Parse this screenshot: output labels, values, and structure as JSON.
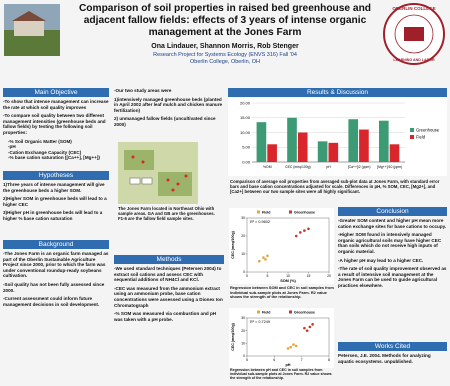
{
  "header": {
    "title": "Comparison of soil properties in raised bed greenhouse and adjacent fallow fields: effects of 3 years of intense organic management at the Jones Farm",
    "authors": "Ona Lindauer, Shannon Morris, Rob Stenger",
    "course": "Research Project for Systems Ecology (ENVS 316) Fall '04",
    "place": "Oberlin College, Oberlin, OH",
    "logo_text": "OBERLIN COLLEGE",
    "logo_motto": "LEARNING AND LABOR"
  },
  "sections": {
    "objective": {
      "title": "Main Objective",
      "items": [
        "-To show that intense management can increase the rate at which soil quality improves",
        "-To compare soil quality between two different management intensities (greenhouse beds and fallow fields) by testing the following soil properties:"
      ],
      "subitems": [
        "-% Soil Organic Matter (SOM)",
        "-pH",
        "-Cation Exchange Capacity (CEC)",
        "-% base cation saturation ([Ca++], [Mg++])"
      ]
    },
    "hypotheses": {
      "title": "Hypotheses",
      "items": [
        "1)Three years of intense management will give the greenhouse beds a higher SOM.",
        "2)Higher SOM in greenhouse beds will lead to a higher CEC",
        "3)Higher pH in greenhouse beds will lead to a higher % base cation saturation"
      ]
    },
    "background": {
      "title": "Background",
      "items": [
        "-The Jones Farm is an organic farm managed as part of the Oberlin Sustainable Agriculture Project since 2000, prior to which the farm was under conventional roundup-ready soybeans cultivation.",
        "-Soil quality has not been fully assessed since 2000.",
        "-Current assessment could inform future management decisions in soil development."
      ]
    },
    "study": {
      "items": [
        "-Our two study areas were",
        "1)intensively managed greenhouse beds (planted in April 2002 after leaf mulch and chicken manure fertilization)",
        "2) unmanaged fallow fields (uncultivated since 2000)"
      ]
    },
    "map": {
      "items": [
        "The Jones Farm located in Northeast Ohio with sample areas. GA and GB are the greenhouses. F1-6 are the fallow field sample sites."
      ]
    },
    "methods": {
      "title": "Methods",
      "items": [
        "-We used standard techniques (Petersen 2004) to extract soil cations and assess CEC with sequential additions of NH4Cl and KCl.",
        "-CEC was measured from the ammonium extract using an ammonium probe, base cation concentrations were assessed using a Dionex Ion Chromatograph",
        "-% SOM was measured via combustion and pH was taken with a pH probe."
      ]
    },
    "results": {
      "title": "Results & Discussion"
    },
    "conclusion": {
      "title": "Conclusion",
      "items": [
        "-Greater SOM content and higher pH mean more cation exchange sites for base cations to occupy.",
        "-Higher SOM found in intensively managed organic agricultural soils may have higher CEC than soils which do not receive high inputs of organic material.",
        "-A higher pH may lead to a higher CEC.",
        "-The rate of soil quality improvement observed as a result of intensive soil management at the Jones Farm can be used to guide agricultural practices elsewhere."
      ]
    },
    "works": {
      "title": "Works Cited",
      "items": [
        "Petersen, J.E. 2004. Methods for analyzing aquatic ecosystems. unpublished."
      ]
    }
  },
  "chart_data": [
    {
      "type": "bar",
      "categories": [
        "%OM",
        "CEC (meq/100g)",
        "pH",
        "[Ca++]/2 (ppm)",
        "[Mg++]/10 (ppm)"
      ],
      "series": [
        {
          "name": "Greenhouse",
          "color": "#3c9a74",
          "values": [
            13.5,
            15,
            7,
            14.5,
            14
          ]
        },
        {
          "name": "Field",
          "color": "#d9262c",
          "values": [
            6,
            10,
            6.5,
            11,
            6
          ]
        }
      ],
      "ylim": [
        0,
        20
      ],
      "yticks": [
        {
          "value": 0,
          "label": "0.00"
        },
        {
          "value": 5,
          "label": "5.00"
        },
        {
          "value": 10,
          "label": "10.00"
        },
        {
          "value": 15,
          "label": "15.00"
        },
        {
          "value": 20,
          "label": "20.00"
        }
      ],
      "grid": true,
      "caption": "Comparison of average soil properties from averaged sub-plot data at Jones Farm, with standard error bars and base cation concentrations adjusted for scale. Differences in pH, % SOM, CEC, [Mg2+], and [Ca2+] between our two sample sites were all highly significant."
    },
    {
      "type": "scatter",
      "x_label": "SOM (%)",
      "y_label": "CEC (meq/100g)",
      "annotation": "R² = 0.9602",
      "series": [
        {
          "name": "Field",
          "color": "#e8a33c",
          "x": [
            3,
            4,
            5,
            4.5
          ],
          "values": [
            6,
            8,
            9,
            7
          ]
        },
        {
          "name": "Greenhouse",
          "color": "#c0392b",
          "x": [
            12,
            13,
            15,
            14
          ],
          "values": [
            20,
            22,
            24,
            23
          ]
        }
      ],
      "xlim": [
        0,
        20
      ],
      "xticks": [
        0,
        5,
        10,
        15,
        20
      ],
      "ylim": [
        0,
        30
      ],
      "yticks": [
        0,
        10,
        20,
        30
      ],
      "caption": "Regression between SOM and CEC in soil samples from individual sub-sample plots at Jones Farm. R2 value shows the strength of the relationship."
    },
    {
      "type": "scatter",
      "x_label": "pH",
      "y_label": "CEC (meq/100g)",
      "annotation": "R² = 0.7249",
      "series": [
        {
          "name": "Field",
          "color": "#e8a33c",
          "x": [
            6.6,
            6.8,
            6.5,
            6.7
          ],
          "values": [
            7,
            8,
            6,
            9
          ]
        },
        {
          "name": "Greenhouse",
          "color": "#c0392b",
          "x": [
            7.2,
            7.3,
            7.1,
            7.4
          ],
          "values": [
            20,
            23,
            22,
            25
          ]
        }
      ],
      "xlim": [
        5,
        8
      ],
      "xticks": [
        5,
        6,
        7,
        8
      ],
      "ylim": [
        0,
        30
      ],
      "yticks": [
        0,
        10,
        20,
        30
      ],
      "caption": "Regression between pH and CEC in soil samples from individual sub-sample plots at Jones Farm. R2 value shows the strength of the relationship."
    }
  ]
}
